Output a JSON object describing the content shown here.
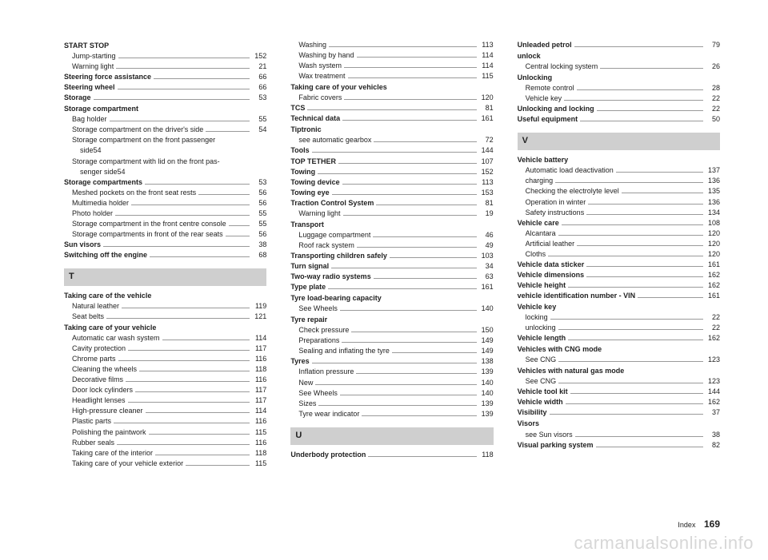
{
  "footer": {
    "label": "Index",
    "page": "169"
  },
  "watermark": "carmanualsonline.info",
  "sections": {
    "T": "T",
    "U": "U",
    "V": "V"
  },
  "col1": [
    {
      "type": "bold",
      "text": "START STOP"
    },
    {
      "type": "sub",
      "text": "Jump-starting",
      "pg": "152"
    },
    {
      "type": "sub",
      "text": "Warning light",
      "pg": "21"
    },
    {
      "type": "boldpg",
      "text": "Steering force assistance",
      "pg": "66"
    },
    {
      "type": "boldpg",
      "text": "Steering wheel",
      "pg": "66"
    },
    {
      "type": "boldpg",
      "text": "Storage",
      "pg": "53"
    },
    {
      "type": "bold",
      "text": "Storage compartment"
    },
    {
      "type": "sub",
      "text": "Bag holder",
      "pg": "55"
    },
    {
      "type": "sub",
      "text": "Storage compartment on the driver's side",
      "pg": "54"
    },
    {
      "type": "sub2",
      "l1": "Storage compartment on the front passenger",
      "l2": "side",
      "pg": "54"
    },
    {
      "type": "sub2",
      "l1": "Storage compartment with lid on the front pas-",
      "l2": "senger side",
      "pg": "54"
    },
    {
      "type": "boldpg",
      "text": "Storage compartments",
      "pg": "53"
    },
    {
      "type": "sub",
      "text": "Meshed pockets on the front seat rests",
      "pg": "56"
    },
    {
      "type": "sub",
      "text": "Multimedia holder",
      "pg": "56"
    },
    {
      "type": "sub",
      "text": "Photo holder",
      "pg": "55"
    },
    {
      "type": "sub",
      "text": "Storage compartment in the front centre console",
      "pg": "55"
    },
    {
      "type": "sub",
      "text": "Storage compartments in front of the rear seats",
      "pg": "56"
    },
    {
      "type": "boldpg",
      "text": "Sun visors",
      "pg": "38"
    },
    {
      "type": "boldpg",
      "text": "Switching off the engine",
      "pg": "68"
    },
    {
      "type": "section",
      "key": "T"
    },
    {
      "type": "bold",
      "text": "Taking care of the vehicle"
    },
    {
      "type": "sub",
      "text": "Natural leather",
      "pg": "119"
    },
    {
      "type": "sub",
      "text": "Seat belts",
      "pg": "121"
    },
    {
      "type": "bold",
      "text": "Taking care of your vehicle"
    },
    {
      "type": "sub",
      "text": "Automatic car wash system",
      "pg": "114"
    },
    {
      "type": "sub",
      "text": "Cavity protection",
      "pg": "117"
    },
    {
      "type": "sub",
      "text": "Chrome parts",
      "pg": "116"
    },
    {
      "type": "sub",
      "text": "Cleaning the wheels",
      "pg": "118"
    },
    {
      "type": "sub",
      "text": "Decorative films",
      "pg": "116"
    },
    {
      "type": "sub",
      "text": "Door lock cylinders",
      "pg": "117"
    },
    {
      "type": "sub",
      "text": "Headlight lenses",
      "pg": "117"
    },
    {
      "type": "sub",
      "text": "High-pressure cleaner",
      "pg": "114"
    },
    {
      "type": "sub",
      "text": "Plastic parts",
      "pg": "116"
    },
    {
      "type": "sub",
      "text": "Polishing the paintwork",
      "pg": "115"
    },
    {
      "type": "sub",
      "text": "Rubber seals",
      "pg": "116"
    },
    {
      "type": "sub",
      "text": "Taking care of the interior",
      "pg": "118"
    },
    {
      "type": "sub",
      "text": "Taking care of your vehicle exterior",
      "pg": "115"
    }
  ],
  "col2": [
    {
      "type": "sub",
      "text": "Washing",
      "pg": "113"
    },
    {
      "type": "sub",
      "text": "Washing by hand",
      "pg": "114"
    },
    {
      "type": "sub",
      "text": "Wash system",
      "pg": "114"
    },
    {
      "type": "sub",
      "text": "Wax treatment",
      "pg": "115"
    },
    {
      "type": "bold",
      "text": "Taking care of your vehicles"
    },
    {
      "type": "sub",
      "text": "Fabric covers",
      "pg": "120"
    },
    {
      "type": "boldpg",
      "text": "TCS",
      "pg": "81"
    },
    {
      "type": "boldpg",
      "text": "Technical data",
      "pg": "161"
    },
    {
      "type": "bold",
      "text": "Tiptronic"
    },
    {
      "type": "sub",
      "text": "see automatic gearbox",
      "pg": "72"
    },
    {
      "type": "boldpg",
      "text": "Tools",
      "pg": "144"
    },
    {
      "type": "boldpg",
      "text": "TOP TETHER",
      "pg": "107"
    },
    {
      "type": "boldpg",
      "text": "Towing",
      "pg": "152"
    },
    {
      "type": "boldpg",
      "text": "Towing device",
      "pg": "113"
    },
    {
      "type": "boldpg",
      "text": "Towing eye",
      "pg": "153"
    },
    {
      "type": "boldpg",
      "text": "Traction Control System",
      "pg": "81"
    },
    {
      "type": "sub",
      "text": "Warning light",
      "pg": "19"
    },
    {
      "type": "bold",
      "text": "Transport"
    },
    {
      "type": "sub",
      "text": "Luggage compartment",
      "pg": "46"
    },
    {
      "type": "sub",
      "text": "Roof rack system",
      "pg": "49"
    },
    {
      "type": "boldpg",
      "text": "Transporting children safely",
      "pg": "103"
    },
    {
      "type": "boldpg",
      "text": "Turn signal",
      "pg": "34"
    },
    {
      "type": "boldpg",
      "text": "Two-way radio systems",
      "pg": "63"
    },
    {
      "type": "boldpg",
      "text": "Type plate",
      "pg": "161"
    },
    {
      "type": "bold",
      "text": "Tyre load-bearing capacity"
    },
    {
      "type": "sub",
      "text": "See Wheels",
      "pg": "140"
    },
    {
      "type": "bold",
      "text": "Tyre repair"
    },
    {
      "type": "sub",
      "text": "Check pressure",
      "pg": "150"
    },
    {
      "type": "sub",
      "text": "Preparations",
      "pg": "149"
    },
    {
      "type": "sub",
      "text": "Sealing and inflating the tyre",
      "pg": "149"
    },
    {
      "type": "boldpg",
      "text": "Tyres",
      "pg": "138"
    },
    {
      "type": "sub",
      "text": "Inflation pressure",
      "pg": "139"
    },
    {
      "type": "sub",
      "text": "New",
      "pg": "140"
    },
    {
      "type": "sub",
      "text": "See Wheels",
      "pg": "140"
    },
    {
      "type": "sub",
      "text": "Sizes",
      "pg": "139"
    },
    {
      "type": "sub",
      "text": "Tyre wear indicator",
      "pg": "139"
    },
    {
      "type": "section",
      "key": "U"
    },
    {
      "type": "boldpg",
      "text": "Underbody protection",
      "pg": "118"
    }
  ],
  "col3": [
    {
      "type": "boldpg",
      "text": "Unleaded petrol",
      "pg": "79"
    },
    {
      "type": "bold",
      "text": "unlock"
    },
    {
      "type": "sub",
      "text": "Central locking system",
      "pg": "26"
    },
    {
      "type": "bold",
      "text": "Unlocking"
    },
    {
      "type": "sub",
      "text": "Remote control",
      "pg": "28"
    },
    {
      "type": "sub",
      "text": "Vehicle key",
      "pg": "22"
    },
    {
      "type": "boldpg",
      "text": "Unlocking and locking",
      "pg": "22"
    },
    {
      "type": "boldpg",
      "text": "Useful equipment",
      "pg": "50"
    },
    {
      "type": "section",
      "key": "V"
    },
    {
      "type": "bold",
      "text": "Vehicle battery"
    },
    {
      "type": "sub",
      "text": "Automatic load deactivation",
      "pg": "137"
    },
    {
      "type": "sub",
      "text": "charging",
      "pg": "136"
    },
    {
      "type": "sub",
      "text": "Checking the electrolyte level",
      "pg": "135"
    },
    {
      "type": "sub",
      "text": "Operation in winter",
      "pg": "136"
    },
    {
      "type": "sub",
      "text": "Safety instructions",
      "pg": "134"
    },
    {
      "type": "boldpg",
      "text": "Vehicle care",
      "pg": "108"
    },
    {
      "type": "sub",
      "text": "Alcantara",
      "pg": "120"
    },
    {
      "type": "sub",
      "text": "Artificial leather",
      "pg": "120"
    },
    {
      "type": "sub",
      "text": "Cloths",
      "pg": "120"
    },
    {
      "type": "boldpg",
      "text": "Vehicle data sticker",
      "pg": "161"
    },
    {
      "type": "boldpg",
      "text": "Vehicle dimensions",
      "pg": "162"
    },
    {
      "type": "boldpg",
      "text": "Vehicle height",
      "pg": "162"
    },
    {
      "type": "boldpg",
      "text": "vehicle identification number - VIN",
      "pg": "161"
    },
    {
      "type": "bold",
      "text": "Vehicle key"
    },
    {
      "type": "sub",
      "text": "locking",
      "pg": "22"
    },
    {
      "type": "sub",
      "text": "unlocking",
      "pg": "22"
    },
    {
      "type": "boldpg",
      "text": "Vehicle length",
      "pg": "162"
    },
    {
      "type": "bold",
      "text": "Vehicles with CNG mode"
    },
    {
      "type": "sub",
      "text": "See CNG",
      "pg": "123"
    },
    {
      "type": "bold",
      "text": "Vehicles with natural gas mode"
    },
    {
      "type": "sub",
      "text": "See CNG",
      "pg": "123"
    },
    {
      "type": "boldpg",
      "text": "Vehicle tool kit",
      "pg": "144"
    },
    {
      "type": "boldpg",
      "text": "Vehicle width",
      "pg": "162"
    },
    {
      "type": "boldpg",
      "text": "Visibility",
      "pg": "37"
    },
    {
      "type": "bold",
      "text": "Visors"
    },
    {
      "type": "sub",
      "text": "see Sun visors",
      "pg": "38"
    },
    {
      "type": "boldpg",
      "text": "Visual parking system",
      "pg": "82"
    }
  ]
}
